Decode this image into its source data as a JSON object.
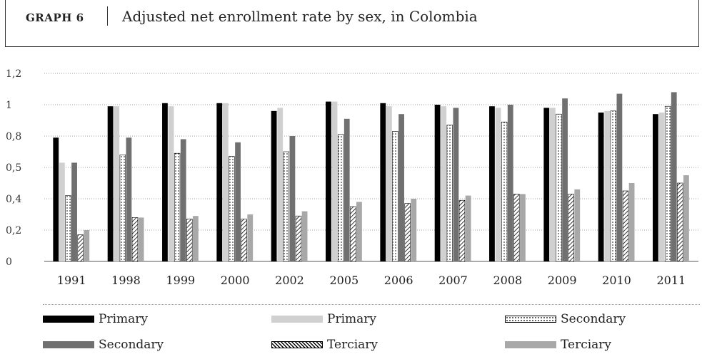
{
  "header": {
    "graph_label": "GRAPH 6",
    "title": "Adjusted net enrollment rate by sex, in Colombia"
  },
  "chart_data": {
    "type": "bar",
    "categories": [
      "1991",
      "1998",
      "1999",
      "2000",
      "2002",
      "2005",
      "2006",
      "2007",
      "2008",
      "2009",
      "2010",
      "2011"
    ],
    "y_tick_labels": [
      "0",
      "0,2",
      "0,4",
      "0,5",
      "0,8",
      "1",
      "1,2"
    ],
    "ylim": [
      0,
      1.2
    ],
    "grid": true,
    "legend_position": "bottom",
    "series": [
      {
        "name": "Primary",
        "color": "#000000",
        "pattern": "solid",
        "values": [
          0.79,
          0.99,
          1.01,
          1.01,
          0.96,
          1.02,
          1.01,
          1.0,
          0.99,
          0.98,
          0.95,
          0.94
        ]
      },
      {
        "name": "Primary",
        "color": "#d0d0d0",
        "pattern": "solid",
        "values": [
          0.63,
          0.99,
          0.99,
          1.01,
          0.98,
          1.02,
          0.99,
          0.99,
          0.98,
          0.98,
          0.96,
          0.95
        ]
      },
      {
        "name": "Secondary",
        "color": "#ffffff",
        "pattern": "dotted",
        "values": [
          0.42,
          0.68,
          0.69,
          0.67,
          0.7,
          0.81,
          0.83,
          0.87,
          0.89,
          0.94,
          0.96,
          0.99
        ]
      },
      {
        "name": "Secondary",
        "color": "#707070",
        "pattern": "solid",
        "values": [
          0.63,
          0.79,
          0.78,
          0.76,
          0.8,
          0.91,
          0.94,
          0.98,
          1.0,
          1.04,
          1.07,
          1.08
        ]
      },
      {
        "name": "Terciary",
        "color": "#ffffff",
        "pattern": "hatched",
        "values": [
          0.17,
          0.28,
          0.27,
          0.27,
          0.29,
          0.35,
          0.37,
          0.39,
          0.43,
          0.43,
          0.45,
          0.5
        ]
      },
      {
        "name": "Terciary",
        "color": "#a8a8a8",
        "pattern": "solid",
        "values": [
          0.2,
          0.28,
          0.29,
          0.3,
          0.32,
          0.38,
          0.4,
          0.42,
          0.43,
          0.46,
          0.5,
          0.55
        ]
      }
    ]
  }
}
